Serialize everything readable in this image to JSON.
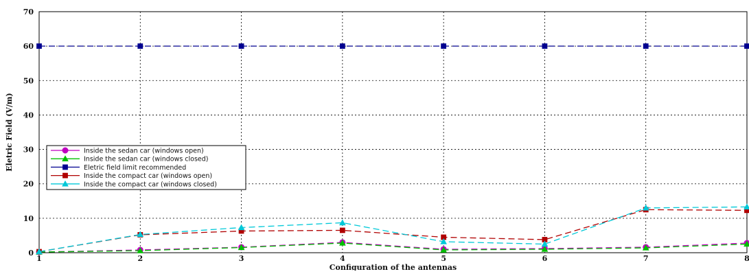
{
  "chart_data": {
    "type": "line",
    "xlabel": "Configuration of the antennas",
    "ylabel": "Eletric Field (V/m)",
    "x": [
      1,
      2,
      3,
      4,
      5,
      6,
      7,
      8
    ],
    "xlim": [
      1,
      8
    ],
    "ylim": [
      0,
      70
    ],
    "xticks": [
      "1",
      "2",
      "3",
      "4",
      "5",
      "6",
      "7",
      "8"
    ],
    "yticks": [
      "0",
      "10",
      "20",
      "30",
      "40",
      "50",
      "60",
      "70"
    ],
    "grid": true,
    "legend_position": "middle-left",
    "series": [
      {
        "name": "Inside the sedan car (windows open)",
        "color": "#c000c0",
        "marker": "circle",
        "values": [
          0.2,
          0.8,
          1.6,
          3.0,
          1.0,
          1.2,
          1.6,
          2.8
        ]
      },
      {
        "name": "Inside the sedan car (windows closed)",
        "color": "#00c000",
        "marker": "triangle",
        "values": [
          0.2,
          0.6,
          1.5,
          2.8,
          0.8,
          1.0,
          1.4,
          2.5
        ]
      },
      {
        "name": "Eletric field limit recommended",
        "color": "#000090",
        "marker": "square",
        "values": [
          60,
          60,
          60,
          60,
          60,
          60,
          60,
          60
        ]
      },
      {
        "name": "Inside the compact car (windows open)",
        "color": "#b00000",
        "marker": "square",
        "values": [
          0.3,
          5.2,
          6.3,
          6.5,
          4.5,
          3.8,
          12.5,
          12.3
        ]
      },
      {
        "name": "Inside the compact car (windows closed)",
        "color": "#00c8d8",
        "marker": "triangle",
        "values": [
          0.3,
          5.3,
          7.3,
          8.7,
          3.2,
          2.5,
          13.0,
          13.3
        ]
      }
    ]
  }
}
